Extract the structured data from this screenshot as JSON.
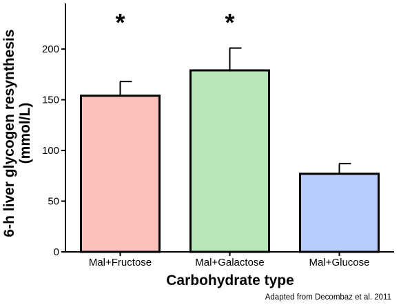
{
  "chart_data": {
    "type": "bar",
    "categories": [
      "Mal+Fructose",
      "Mal+Galactose",
      "Mal+Glucose"
    ],
    "values": [
      154,
      179,
      77
    ],
    "errors": [
      14,
      22,
      10
    ],
    "significance": [
      "*",
      "*",
      ""
    ],
    "colors": [
      "#f9c0bc",
      "#b7e6bb",
      "#b8cdfd"
    ],
    "xlabel": "Carbohydrate type",
    "ylabel": [
      "6-h liver glycogen resynthesis",
      "(mmol/L)"
    ],
    "ylim": [
      0,
      245
    ],
    "yticks": [
      0,
      50,
      100,
      150,
      200
    ],
    "grid": false
  },
  "credit": "Adapted from Decombaz et al. 2011"
}
